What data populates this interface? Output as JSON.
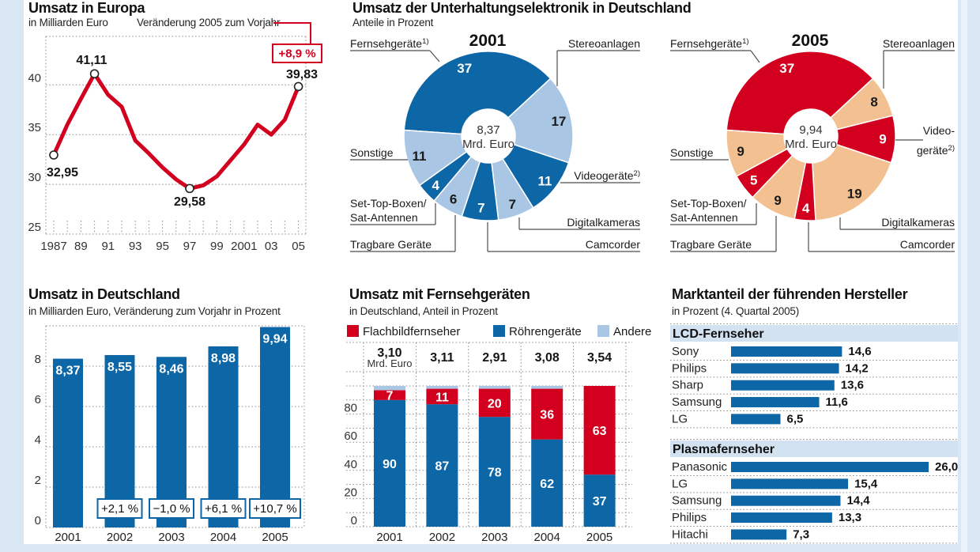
{
  "palette": {
    "accent_red": "#d2001e",
    "bar_blue": "#0d66a6",
    "light_blue": "#a9c7e5",
    "peach": "#f3c191",
    "panel": "#ffffff",
    "frame": "#d9e6f3"
  },
  "chart_data": [
    {
      "id": "umsatz_europa",
      "type": "line",
      "title": "Umsatz in Europa",
      "subtitle": "in Milliarden Euro",
      "annotation": {
        "label": "Veränderung 2005 zum Vorjahr",
        "value": "+8,9 %"
      },
      "x": [
        1987,
        1988,
        1989,
        1990,
        1991,
        1992,
        1993,
        1994,
        1995,
        1996,
        1997,
        1998,
        1999,
        2000,
        2001,
        2002,
        2003,
        2004,
        2005
      ],
      "values": [
        32.95,
        36.0,
        38.6,
        41.11,
        39.0,
        37.8,
        34.4,
        33.1,
        31.7,
        30.5,
        29.58,
        29.9,
        30.8,
        32.4,
        34.0,
        36.0,
        35.0,
        36.5,
        39.83
      ],
      "xticklabels": [
        "1987",
        "89",
        "91",
        "93",
        "95",
        "97",
        "99",
        "2001",
        "03",
        "05"
      ],
      "yticks": [
        25,
        30,
        35,
        40
      ],
      "ylim": [
        25,
        45
      ],
      "grid": true,
      "line_color": "#d2001e",
      "point_labels": [
        {
          "year": 1987,
          "text": "32,95"
        },
        {
          "year": 1990,
          "text": "41,11"
        },
        {
          "year": 1997,
          "text": "29,58"
        },
        {
          "year": 2005,
          "text": "39,83"
        }
      ]
    },
    {
      "id": "umsatz_unterhaltungselektronik",
      "type": "pie",
      "title": "Umsatz der Unterhaltungselektronik in Deutschland",
      "subtitle": "Anteile in Prozent",
      "pies": [
        {
          "year": "2001",
          "center_value": "8,37",
          "center_unit": "Mrd. Euro",
          "colors": [
            "#0d66a6",
            "#a9c7e5"
          ],
          "slices": [
            {
              "label_lines": [
                "Fernsehgeräte"
              ],
              "sup": "1)",
              "value": 37
            },
            {
              "label_lines": [
                "Stereoanlagen"
              ],
              "value": 17
            },
            {
              "label_lines": [
                "Videogeräte"
              ],
              "sup": "2)",
              "value": 11
            },
            {
              "label_lines": [
                "Digitalkameras"
              ],
              "value": 7
            },
            {
              "label_lines": [
                "Camcorder"
              ],
              "value": 7
            },
            {
              "label_lines": [
                "Tragbare Geräte"
              ],
              "value": 6
            },
            {
              "label_lines": [
                "Set-Top-Boxen/",
                "Sat-Antennen"
              ],
              "value": 4
            },
            {
              "label_lines": [
                "Sonstige"
              ],
              "value": 11
            }
          ]
        },
        {
          "year": "2005",
          "center_value": "9,94",
          "center_unit": "Mrd. Euro",
          "colors": [
            "#d2001e",
            "#f3c191"
          ],
          "slices": [
            {
              "label_lines": [
                "Fernsehgeräte"
              ],
              "sup": "1)",
              "value": 37
            },
            {
              "label_lines": [
                "Stereoanlagen"
              ],
              "value": 8
            },
            {
              "label_lines": [
                "Video-",
                "geräte"
              ],
              "sup": "2)",
              "value": 9
            },
            {
              "label_lines": [
                "Digitalkameras"
              ],
              "value": 19
            },
            {
              "label_lines": [
                "Camcorder"
              ],
              "value": 4
            },
            {
              "label_lines": [
                "Tragbare Geräte"
              ],
              "value": 9
            },
            {
              "label_lines": [
                "Set-Top-Boxen/",
                "Sat-Antennen"
              ],
              "value": 5
            },
            {
              "label_lines": [
                "Sonstige"
              ],
              "value": 9
            }
          ]
        }
      ]
    },
    {
      "id": "umsatz_deutschland",
      "type": "bar",
      "title": "Umsatz in Deutschland",
      "subtitle": "in Milliarden Euro, Veränderung zum Vorjahr in Prozent",
      "categories": [
        "2001",
        "2002",
        "2003",
        "2004",
        "2005"
      ],
      "values": [
        8.37,
        8.55,
        8.46,
        8.98,
        9.94
      ],
      "value_labels": [
        "8,37",
        "8,55",
        "8,46",
        "8,98",
        "9,94"
      ],
      "change_labels": [
        "",
        "+2,1 %",
        "−1,0 %",
        "+6,1 %",
        "+10,7 %"
      ],
      "yticks": [
        0,
        2,
        4,
        6,
        8
      ],
      "ylim": [
        0,
        10
      ],
      "bar_color": "#0d66a6"
    },
    {
      "id": "umsatz_fernsehgeraete",
      "type": "stacked_bar",
      "title": "Umsatz mit Fernsehgeräten",
      "subtitle": "in Deutschland, Anteil in Prozent",
      "legend": [
        {
          "label": "Flachbildfernseher",
          "color": "#d2001e"
        },
        {
          "label": "Röhrengeräte",
          "color": "#0d66a6"
        },
        {
          "label": "Andere",
          "color": "#a9c7e5"
        }
      ],
      "categories": [
        "2001",
        "2002",
        "2003",
        "2004",
        "2005"
      ],
      "totals": [
        "3,10",
        "3,11",
        "2,91",
        "3,08",
        "3,54"
      ],
      "totals_unit": "Mrd. Euro",
      "series": [
        {
          "name": "Röhrengeräte",
          "color": "#0d66a6",
          "labeled": true,
          "values": [
            90,
            87,
            78,
            62,
            37
          ]
        },
        {
          "name": "Flachbildfernseher",
          "color": "#d2001e",
          "labeled": true,
          "values": [
            7,
            11,
            20,
            36,
            63
          ]
        },
        {
          "name": "Andere",
          "color": "#a9c7e5",
          "labeled": false,
          "values": [
            3,
            2,
            2,
            2,
            0
          ]
        }
      ],
      "yticks": [
        0,
        20,
        40,
        60,
        80
      ],
      "ylim": [
        0,
        100
      ]
    },
    {
      "id": "marktanteil_hersteller",
      "type": "bar_h",
      "title": "Marktanteil der führenden Hersteller",
      "subtitle": "in Prozent (4. Quartal 2005)",
      "bar_color": "#0d66a6",
      "xmax": 26.0,
      "sections": [
        {
          "header": "LCD-Fernseher",
          "rows": [
            {
              "name": "Sony",
              "value": 14.6,
              "label": "14,6"
            },
            {
              "name": "Philips",
              "value": 14.2,
              "label": "14,2"
            },
            {
              "name": "Sharp",
              "value": 13.6,
              "label": "13,6"
            },
            {
              "name": "Samsung",
              "value": 11.6,
              "label": "11,6"
            },
            {
              "name": "LG",
              "value": 6.5,
              "label": "6,5"
            }
          ]
        },
        {
          "header": "Plasmafernseher",
          "rows": [
            {
              "name": "Panasonic",
              "value": 26.0,
              "label": "26,0"
            },
            {
              "name": "LG",
              "value": 15.4,
              "label": "15,4"
            },
            {
              "name": "Samsung",
              "value": 14.4,
              "label": "14,4"
            },
            {
              "name": "Philips",
              "value": 13.3,
              "label": "13,3"
            },
            {
              "name": "Hitachi",
              "value": 7.3,
              "label": "7,3"
            }
          ]
        }
      ]
    }
  ]
}
